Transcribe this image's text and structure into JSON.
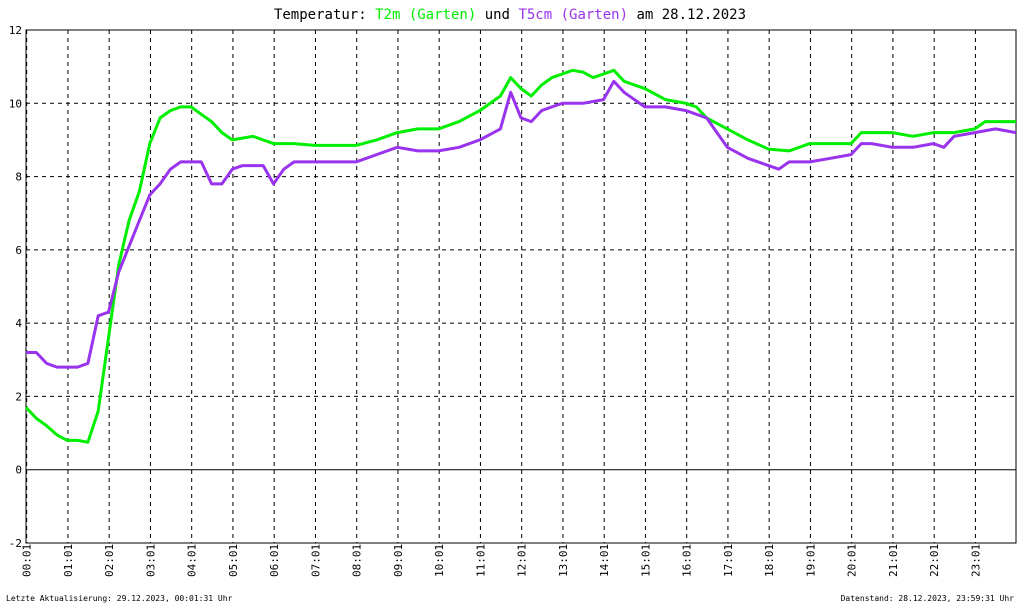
{
  "title": {
    "prefix": "Temperatur:",
    "series1": "T2m (Garten)",
    "middle": "und",
    "series2": "T5cm (Garten)",
    "suffix": "am 28.12.2023"
  },
  "footer": {
    "left": "Letzte Aktualisierung: 29.12.2023, 00:01:31 Uhr",
    "right": "Datenstand: 28.12.2023, 23:59:31 Uhr"
  },
  "colors": {
    "t2m": "#00ee00",
    "t5cm": "#9933ee",
    "grid": "#000000",
    "axis": "#000000"
  },
  "chart_data": {
    "type": "line",
    "title": "Temperatur: T2m (Garten) und T5cm (Garten) am 28.12.2023",
    "xlabel": "",
    "ylabel": "",
    "ylim": [
      -2,
      12
    ],
    "xlim": [
      0,
      24
    ],
    "x_unit": "hours",
    "yticks": [
      -2,
      0,
      2,
      4,
      6,
      8,
      10,
      12
    ],
    "xticks": [
      "00:01",
      "01:01",
      "02:01",
      "03:01",
      "04:01",
      "05:01",
      "06:01",
      "07:01",
      "08:01",
      "09:01",
      "10:01",
      "11:01",
      "12:01",
      "13:01",
      "14:01",
      "15:01",
      "16:01",
      "17:01",
      "18:01",
      "19:01",
      "20:01",
      "21:01",
      "22:01",
      "23:01"
    ],
    "grid": true,
    "series": [
      {
        "name": "T2m (Garten)",
        "color": "#00ee00",
        "x": [
          0,
          0.25,
          0.5,
          0.75,
          1.0,
          1.25,
          1.5,
          1.75,
          2.0,
          2.25,
          2.5,
          2.75,
          3.0,
          3.25,
          3.5,
          3.75,
          4.0,
          4.25,
          4.5,
          4.75,
          5.0,
          5.5,
          6.0,
          6.5,
          7.0,
          7.5,
          8.0,
          8.5,
          9.0,
          9.5,
          10.0,
          10.5,
          11.0,
          11.5,
          11.75,
          12.0,
          12.25,
          12.5,
          12.75,
          13.0,
          13.25,
          13.5,
          13.75,
          14.0,
          14.25,
          14.5,
          15.0,
          15.5,
          16.0,
          16.25,
          16.5,
          17.0,
          17.5,
          18.0,
          18.5,
          19.0,
          19.5,
          20.0,
          20.25,
          20.5,
          21.0,
          21.5,
          22.0,
          22.5,
          23.0,
          23.25,
          23.5,
          24.0
        ],
        "values": [
          1.7,
          1.4,
          1.2,
          0.95,
          0.8,
          0.8,
          0.75,
          1.6,
          3.6,
          5.6,
          6.8,
          7.6,
          8.9,
          9.6,
          9.8,
          9.9,
          9.9,
          9.7,
          9.5,
          9.2,
          9.0,
          9.1,
          8.9,
          8.9,
          8.85,
          8.85,
          8.85,
          9.0,
          9.2,
          9.3,
          9.3,
          9.5,
          9.8,
          10.2,
          10.7,
          10.4,
          10.2,
          10.5,
          10.7,
          10.8,
          10.9,
          10.85,
          10.7,
          10.8,
          10.9,
          10.6,
          10.4,
          10.1,
          10.0,
          9.9,
          9.6,
          9.3,
          9.0,
          8.75,
          8.7,
          8.9,
          8.9,
          8.9,
          9.2,
          9.2,
          9.2,
          9.1,
          9.2,
          9.2,
          9.3,
          9.5,
          9.5,
          9.5
        ]
      },
      {
        "name": "T5cm (Garten)",
        "color": "#9933ee",
        "x": [
          0,
          0.25,
          0.5,
          0.75,
          1.0,
          1.25,
          1.5,
          1.75,
          2.0,
          2.25,
          2.5,
          2.75,
          3.0,
          3.25,
          3.5,
          3.75,
          4.0,
          4.25,
          4.5,
          4.75,
          5.0,
          5.25,
          5.5,
          5.75,
          6.0,
          6.25,
          6.5,
          7.0,
          7.5,
          8.0,
          8.25,
          8.5,
          9.0,
          9.5,
          10.0,
          10.5,
          11.0,
          11.5,
          11.75,
          12.0,
          12.25,
          12.5,
          12.75,
          13.0,
          13.5,
          14.0,
          14.25,
          14.5,
          15.0,
          15.5,
          16.0,
          16.5,
          17.0,
          17.5,
          18.0,
          18.25,
          18.5,
          19.0,
          19.5,
          20.0,
          20.25,
          20.5,
          21.0,
          21.5,
          22.0,
          22.25,
          22.5,
          23.0,
          23.5,
          24.0
        ],
        "values": [
          3.2,
          3.2,
          2.9,
          2.8,
          2.8,
          2.8,
          2.9,
          4.2,
          4.3,
          5.4,
          6.1,
          6.8,
          7.5,
          7.8,
          8.2,
          8.4,
          8.4,
          8.4,
          7.8,
          7.8,
          8.2,
          8.3,
          8.3,
          8.3,
          7.8,
          8.2,
          8.4,
          8.4,
          8.4,
          8.4,
          8.5,
          8.6,
          8.8,
          8.7,
          8.7,
          8.8,
          9.0,
          9.3,
          10.3,
          9.6,
          9.5,
          9.8,
          9.9,
          10.0,
          10.0,
          10.1,
          10.6,
          10.3,
          9.9,
          9.9,
          9.8,
          9.6,
          8.8,
          8.5,
          8.3,
          8.2,
          8.4,
          8.4,
          8.5,
          8.6,
          8.9,
          8.9,
          8.8,
          8.8,
          8.9,
          8.8,
          9.1,
          9.2,
          9.3,
          9.2
        ]
      }
    ]
  }
}
